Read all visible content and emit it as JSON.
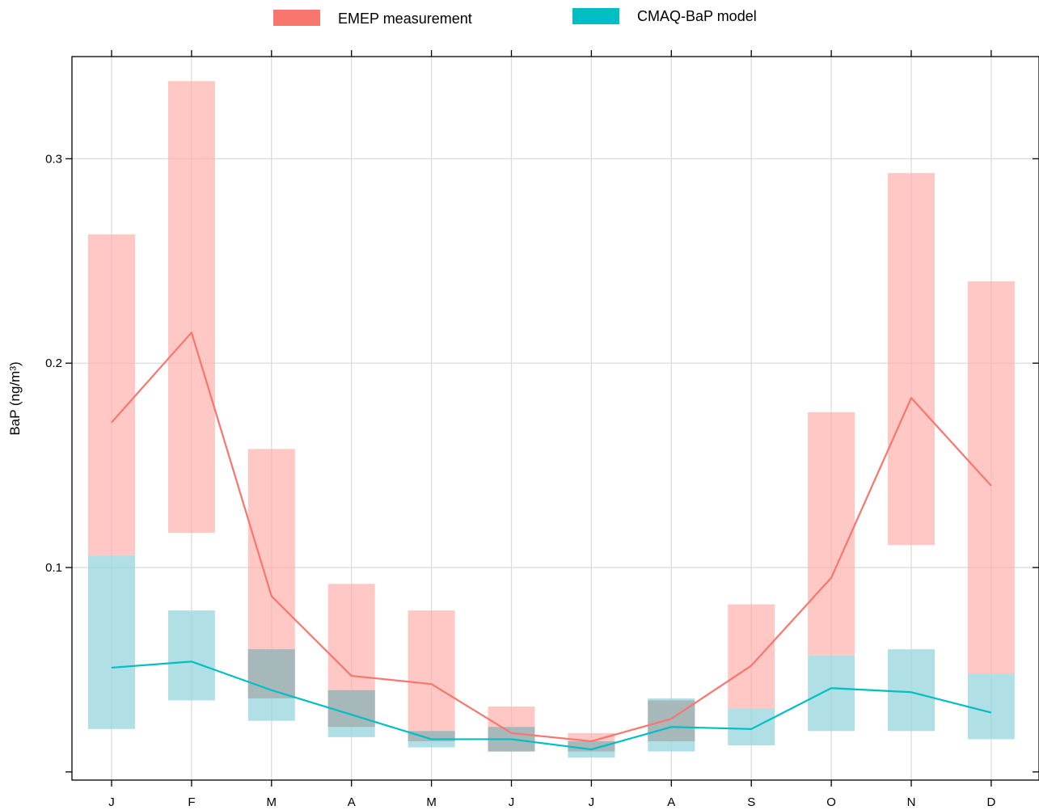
{
  "chart_data": {
    "type": "bar",
    "ylabel": "BaP (ng/m³)",
    "categories": [
      "J",
      "F",
      "M",
      "A",
      "M",
      "J",
      "J",
      "A",
      "S",
      "O",
      "N",
      "D"
    ],
    "yticks": [
      0.1,
      0.2,
      0.3
    ],
    "ytick_labels": [
      "0.1",
      "0.2",
      "0.3"
    ],
    "ylim": [
      -0.004,
      0.35
    ],
    "grid": true,
    "legend_position": "top",
    "series": [
      {
        "name": "EMEP measurement",
        "color": "#F8766D",
        "fill_color": "#FFAAA6",
        "line": [
          0.171,
          0.215,
          0.086,
          0.047,
          0.043,
          0.019,
          0.015,
          0.026,
          0.052,
          0.095,
          0.183,
          0.14
        ],
        "low": [
          0.106,
          0.117,
          0.036,
          0.022,
          0.015,
          0.01,
          0.01,
          0.015,
          0.031,
          0.057,
          0.111,
          0.048
        ],
        "high": [
          0.263,
          0.338,
          0.158,
          0.092,
          0.079,
          0.032,
          0.019,
          0.035,
          0.082,
          0.176,
          0.293,
          0.24
        ]
      },
      {
        "name": "CMAQ-BaP model",
        "color": "#00BFC4",
        "fill_color": "#9CD8DF",
        "line": [
          0.051,
          0.054,
          0.04,
          0.028,
          0.016,
          0.016,
          0.011,
          0.022,
          0.021,
          0.041,
          0.039,
          0.029
        ],
        "low": [
          0.021,
          0.035,
          0.025,
          0.017,
          0.012,
          0.01,
          0.007,
          0.01,
          0.013,
          0.02,
          0.02,
          0.016
        ],
        "high": [
          0.106,
          0.079,
          0.06,
          0.04,
          0.02,
          0.022,
          0.015,
          0.036,
          0.031,
          0.057,
          0.06,
          0.048
        ]
      }
    ]
  }
}
